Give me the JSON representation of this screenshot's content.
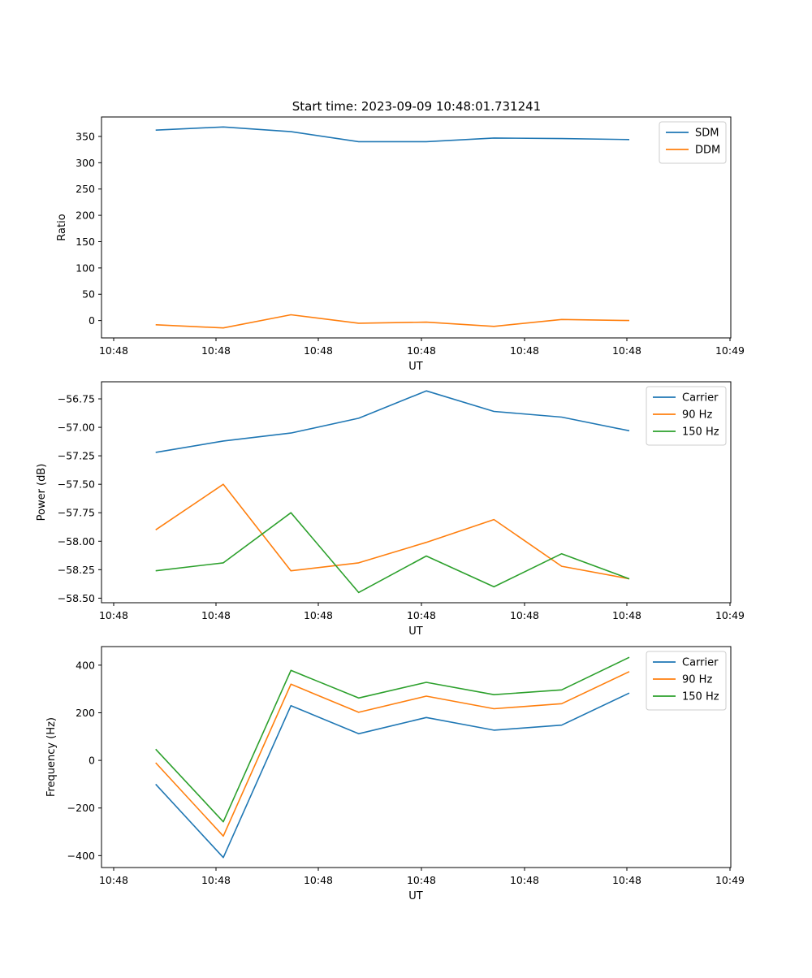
{
  "figure": {
    "title": "Start time: 2023-09-09 10:48:01.731241"
  },
  "chart_data": [
    {
      "type": "line",
      "ylabel": "Ratio",
      "xlabel": "UT",
      "xticks": [
        "10:48",
        "10:48",
        "10:48",
        "10:48",
        "10:48",
        "10:48",
        "10:49"
      ],
      "yticks": [
        0,
        50,
        100,
        150,
        200,
        250,
        300,
        350
      ],
      "ylim": [
        -33,
        387
      ],
      "x": [
        1,
        2,
        3,
        4,
        5,
        6,
        7,
        8
      ],
      "xlim": [
        0.2,
        9.5
      ],
      "legend": "top-right",
      "series": [
        {
          "name": "SDM",
          "color": "#1f77b4",
          "values": [
            362,
            368,
            359,
            340,
            340,
            347,
            346,
            344
          ]
        },
        {
          "name": "DDM",
          "color": "#ff7f0e",
          "values": [
            -8,
            -14,
            11,
            -5,
            -3,
            -11,
            2,
            0
          ]
        }
      ]
    },
    {
      "type": "line",
      "ylabel": "Power (dB)",
      "xlabel": "UT",
      "xticks": [
        "10:48",
        "10:48",
        "10:48",
        "10:48",
        "10:48",
        "10:48",
        "10:49"
      ],
      "yticks": [
        -58.5,
        -58.25,
        -58.0,
        -57.75,
        -57.5,
        -57.25,
        -57.0,
        -56.75
      ],
      "ytick_labels": [
        "−58.50",
        "−58.25",
        "−58.00",
        "−57.75",
        "−57.50",
        "−57.25",
        "−57.00",
        "−56.75"
      ],
      "ylim": [
        -58.54,
        -56.6
      ],
      "x": [
        1,
        2,
        3,
        4,
        5,
        6,
        7,
        8
      ],
      "xlim": [
        0.2,
        9.5
      ],
      "legend": "top-right",
      "series": [
        {
          "name": "Carrier",
          "color": "#1f77b4",
          "values": [
            -57.22,
            -57.12,
            -57.05,
            -56.92,
            -56.68,
            -56.86,
            -56.91,
            -57.03
          ]
        },
        {
          "name": "90 Hz",
          "color": "#ff7f0e",
          "values": [
            -57.9,
            -57.5,
            -58.26,
            -58.19,
            -58.01,
            -57.81,
            -58.22,
            -58.33
          ]
        },
        {
          "name": "150 Hz",
          "color": "#2ca02c",
          "values": [
            -58.26,
            -58.19,
            -57.75,
            -58.45,
            -58.13,
            -58.4,
            -58.11,
            -58.33
          ]
        }
      ]
    },
    {
      "type": "line",
      "ylabel": "Frequency (Hz)",
      "xlabel": "UT",
      "xticks": [
        "10:48",
        "10:48",
        "10:48",
        "10:48",
        "10:48",
        "10:48",
        "10:49"
      ],
      "yticks": [
        -400,
        -200,
        0,
        200,
        400
      ],
      "ytick_labels": [
        "−400",
        "−200",
        "0",
        "200",
        "400"
      ],
      "ylim": [
        -450,
        478
      ],
      "x": [
        1,
        2,
        3,
        4,
        5,
        6,
        7,
        8
      ],
      "xlim": [
        0.2,
        9.5
      ],
      "legend": "top-right",
      "series": [
        {
          "name": "Carrier",
          "color": "#1f77b4",
          "values": [
            -100,
            -408,
            230,
            112,
            180,
            127,
            148,
            283
          ]
        },
        {
          "name": "90 Hz",
          "color": "#ff7f0e",
          "values": [
            -10,
            -318,
            320,
            202,
            270,
            217,
            238,
            373
          ]
        },
        {
          "name": "150 Hz",
          "color": "#2ca02c",
          "values": [
            47,
            -258,
            378,
            262,
            328,
            276,
            296,
            433
          ]
        }
      ]
    }
  ]
}
